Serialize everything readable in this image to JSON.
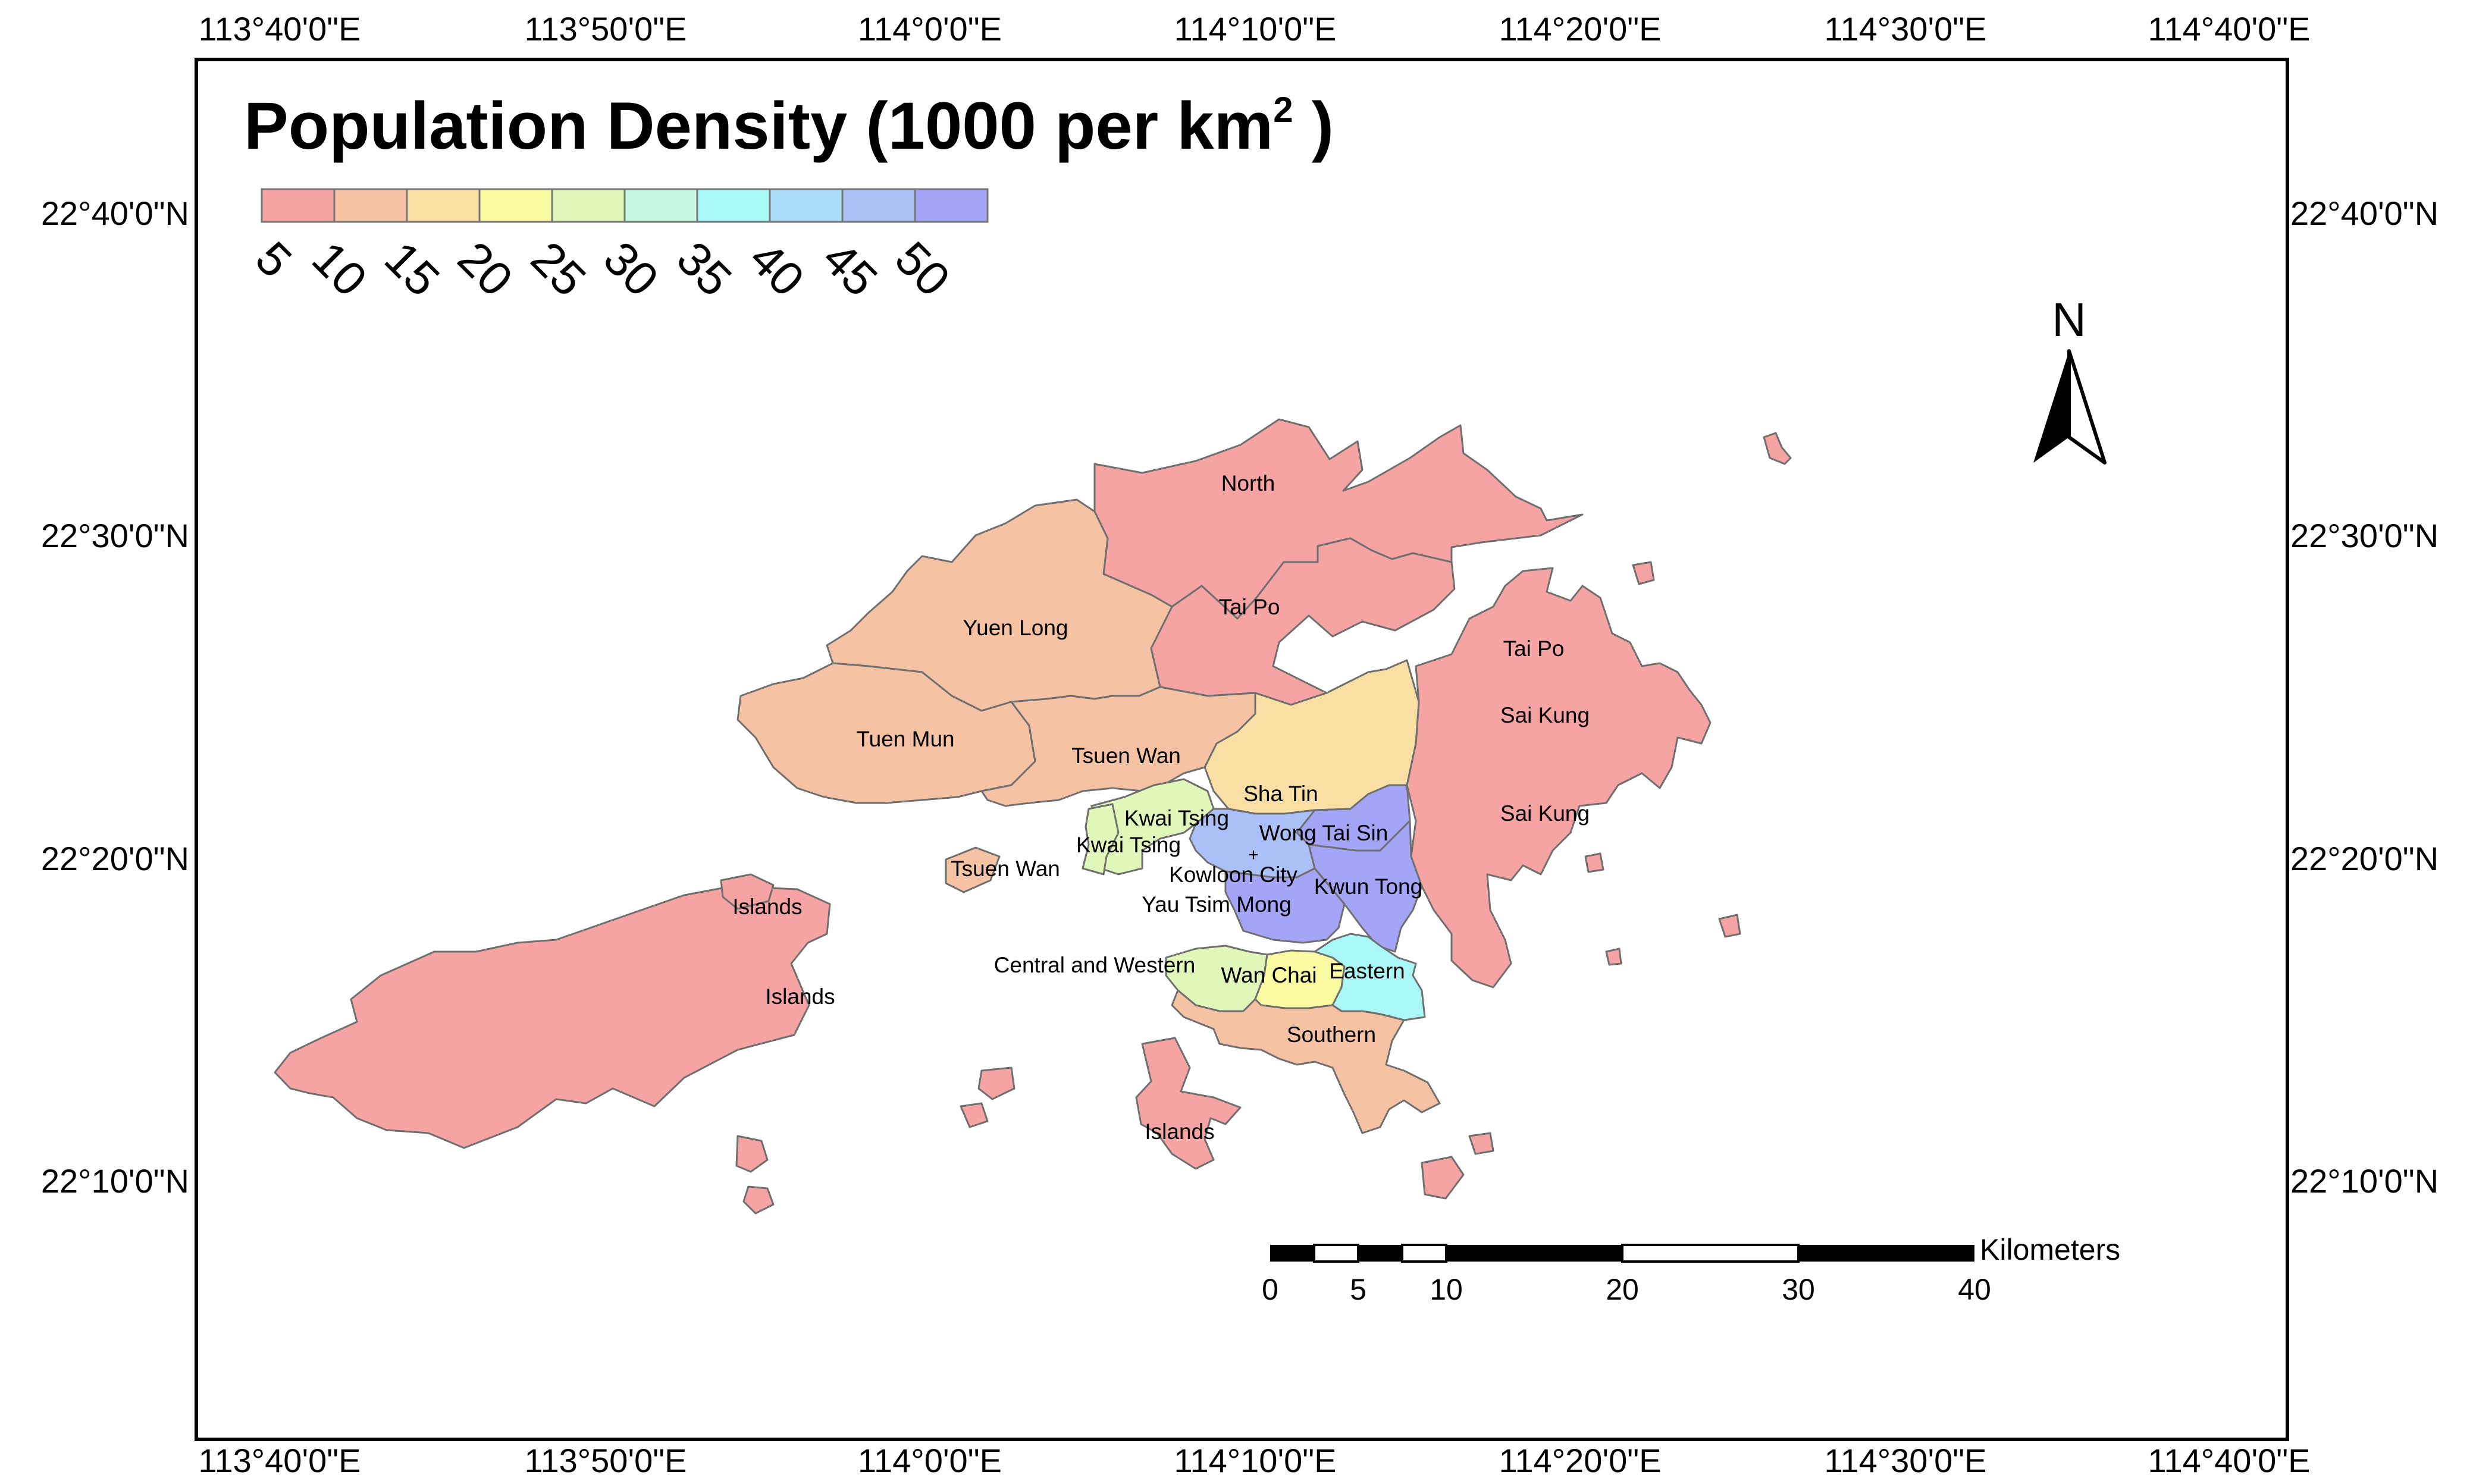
{
  "map": {
    "title": "Population Density (1000 per km",
    "title_sup": "2",
    "title_end": " )",
    "graticule": {
      "longitudes": [
        "113°40'0\"E",
        "113°50'0\"E",
        "114°0'0\"E",
        "114°10'0\"E",
        "114°20'0\"E",
        "114°30'0\"E",
        "114°40'0\"E"
      ],
      "latitudes": [
        "22°40'0\"N",
        "22°30'0\"N",
        "22°20'0\"N",
        "22°10'0\"N"
      ]
    },
    "legend": {
      "classes": [
        {
          "label": "5",
          "color": "#f5a3a3"
        },
        {
          "label": "10",
          "color": "#f5c3a3"
        },
        {
          "label": "15",
          "color": "#fadfa5"
        },
        {
          "label": "20",
          "color": "#fafaa3"
        },
        {
          "label": "25",
          "color": "#e1f7b9"
        },
        {
          "label": "30",
          "color": "#c6f7e0"
        },
        {
          "label": "35",
          "color": "#aaf7f7"
        },
        {
          "label": "40",
          "color": "#aadcf7"
        },
        {
          "label": "45",
          "color": "#aac0f7"
        },
        {
          "label": "50",
          "color": "#a5a5f7"
        }
      ]
    },
    "north_arrow": {
      "label": "N",
      "icon": "north-arrow-icon"
    },
    "scale_bar": {
      "unit": "Kilometers",
      "ticks": [
        "0",
        "5",
        "10",
        "20",
        "30",
        "40"
      ]
    },
    "districts": [
      {
        "name": "North",
        "density_class": "5",
        "color": "#f5a3a3"
      },
      {
        "name": "Tai Po",
        "density_class": "5",
        "color": "#f5a3a3"
      },
      {
        "name": "Yuen Long",
        "density_class": "10",
        "color": "#f5c3a3"
      },
      {
        "name": "Tuen Mun",
        "density_class": "10",
        "color": "#f5c3a3"
      },
      {
        "name": "Tsuen Wan",
        "density_class": "10",
        "color": "#f5c3a3"
      },
      {
        "name": "Sha Tin",
        "density_class": "15",
        "color": "#fadfa5"
      },
      {
        "name": "Sai Kung",
        "density_class": "5",
        "color": "#f5a3a3"
      },
      {
        "name": "Kwai Tsing",
        "density_class": "25",
        "color": "#e1f7b9"
      },
      {
        "name": "Wong Tai Sin",
        "density_class": "50",
        "color": "#a5a5f7"
      },
      {
        "name": "Kowloon City",
        "density_class": "45",
        "color": "#aac0f7"
      },
      {
        "name": "Kwun Tong",
        "density_class": "50",
        "color": "#a5a5f7"
      },
      {
        "name": "Yau Tsim Mong",
        "density_class": "50",
        "color": "#a5a5f7"
      },
      {
        "name": "Islands",
        "density_class": "5",
        "color": "#f5a3a3"
      },
      {
        "name": "Central and Western",
        "density_class": "25",
        "color": "#e1f7b9"
      },
      {
        "name": "Wan Chai",
        "density_class": "20",
        "color": "#fafaa3"
      },
      {
        "name": "Eastern",
        "density_class": "35",
        "color": "#aaf7f7"
      },
      {
        "name": "Southern",
        "density_class": "10",
        "color": "#f5c3a3"
      }
    ],
    "labels": {
      "north": "North",
      "tai_po_1": "Tai Po",
      "tai_po_2": "Tai Po",
      "yuen_long": "Yuen Long",
      "tuen_mun": "Tuen Mun",
      "tsuen_wan_1": "Tsuen Wan",
      "tsuen_wan_2": "Tsuen Wan",
      "sha_tin": "Sha Tin",
      "sai_kung_1": "Sai Kung",
      "sai_kung_2": "Sai Kung",
      "kwai_tsing_1": "Kwai Tsing",
      "kwai_tsing_2": "Kwai Tsing",
      "wong_tai_sin": "Wong Tai Sin",
      "kowloon_city": "Kowloon City",
      "kwun_tong": "Kwun Tong",
      "yau_tsim_mong": "Yau Tsim Mong",
      "islands_1": "Islands",
      "islands_2": "Islands",
      "islands_3": "Islands",
      "central_western": "Central and Western",
      "wan_chai": "Wan Chai",
      "eastern": "Eastern",
      "southern": "Southern"
    }
  }
}
